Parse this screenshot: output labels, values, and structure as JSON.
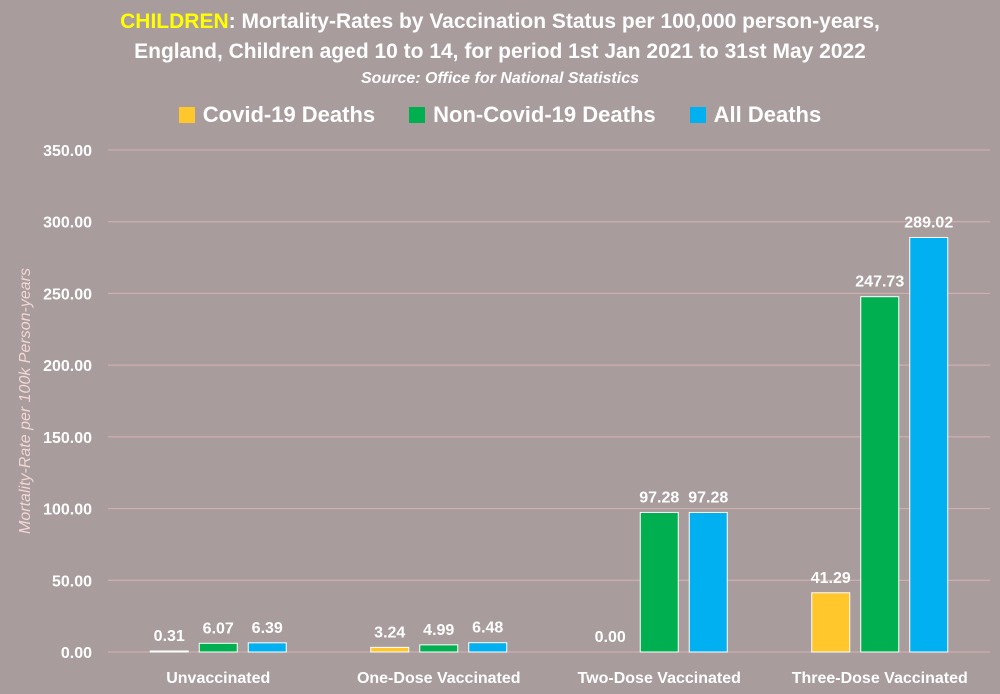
{
  "header": {
    "highlight": "CHILDREN",
    "title_rest": ": Mortality-Rates by Vaccination Status per 100,000 person-years,",
    "title_line2": "England, Children aged 10 to 14, for period 1st Jan 2021 to 31st May 2022",
    "subtitle": "Source: Office for National Statistics"
  },
  "colors": {
    "background": "#a89c9c",
    "grid": "#d7b2b2",
    "title_highlight": "#ffff00",
    "covid": "#ffc72c",
    "non_covid": "#00b050",
    "all": "#00b0f0"
  },
  "chart_data": {
    "type": "bar",
    "title": "CHILDREN: Mortality-Rates by Vaccination Status per 100,000 person-years, England, Children aged 10 to 14, for period 1st Jan 2021 to 31st May 2022",
    "subtitle": "Source: Office for National Statistics",
    "xlabel": "",
    "ylabel": "Mortality-Rate per 100k Person-years",
    "categories": [
      "Unvaccinated",
      "One-Dose Vaccinated",
      "Two-Dose Vaccinated",
      "Three-Dose Vaccinated"
    ],
    "series": [
      {
        "name": "Covid-19 Deaths",
        "values": [
          0.31,
          3.24,
          0.0,
          41.29
        ],
        "labels": [
          "0.31",
          "3.24",
          "0.00",
          "41.29"
        ],
        "color": "#ffc72c"
      },
      {
        "name": "Non-Covid-19 Deaths",
        "values": [
          6.07,
          4.99,
          97.28,
          247.73
        ],
        "labels": [
          "6.07",
          "4.99",
          "97.28",
          "247.73"
        ],
        "color": "#00b050"
      },
      {
        "name": "All Deaths",
        "values": [
          6.39,
          6.48,
          97.28,
          289.02
        ],
        "labels": [
          "6.39",
          "6.48",
          "97.28",
          "289.02"
        ],
        "color": "#00b0f0"
      }
    ],
    "ylim": [
      0,
      350
    ],
    "yticks": [
      "0.00",
      "50.00",
      "100.00",
      "150.00",
      "200.00",
      "250.00",
      "300.00",
      "350.00"
    ],
    "grid": true,
    "legend_position": "top"
  }
}
